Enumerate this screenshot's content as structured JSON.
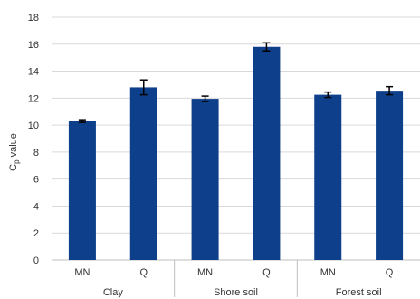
{
  "chart_data": {
    "type": "bar",
    "title": "",
    "xlabel": "",
    "ylabel": "C",
    "ylabel_subscript": "p",
    "ylabel_suffix": " value",
    "ylim": [
      0,
      18
    ],
    "yticks": [
      0,
      2,
      4,
      6,
      8,
      10,
      12,
      14,
      16,
      18
    ],
    "grid": "horizontal",
    "categories": [
      "MN",
      "Q",
      "MN",
      "Q",
      "MN",
      "Q"
    ],
    "groups": [
      {
        "label": "Clay",
        "span": [
          0,
          1
        ]
      },
      {
        "label": "Shore soil",
        "span": [
          2,
          3
        ]
      },
      {
        "label": "Forest soil",
        "span": [
          4,
          5
        ]
      }
    ],
    "values": [
      10.3,
      12.8,
      11.95,
      15.8,
      12.25,
      12.55
    ],
    "errors": [
      0.1,
      0.55,
      0.2,
      0.3,
      0.2,
      0.3
    ],
    "colors": {
      "bar": "#0d3f8a",
      "error": "#000000",
      "grid": "#d9d9d9",
      "axis": "#bfbfbf"
    }
  }
}
